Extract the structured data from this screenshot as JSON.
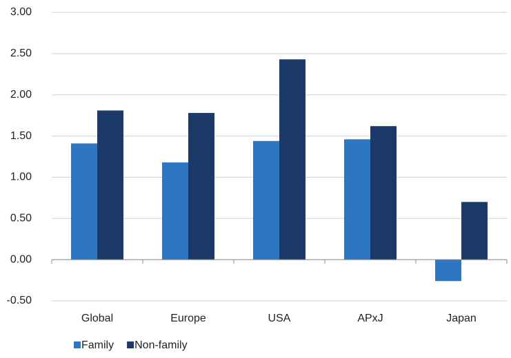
{
  "chart_data": {
    "type": "bar",
    "categories": [
      "Global",
      "Europe",
      "USA",
      "APxJ",
      "Japan"
    ],
    "series": [
      {
        "name": "Family",
        "color": "#2e75c2",
        "values": [
          1.41,
          1.18,
          1.44,
          1.46,
          -0.26
        ]
      },
      {
        "name": "Non-family",
        "color": "#1b3a68",
        "values": [
          1.81,
          1.78,
          2.43,
          1.62,
          0.7
        ]
      }
    ],
    "ylim": [
      -0.5,
      3.0
    ],
    "yticks": [
      {
        "value": -0.5,
        "label": "-0.50"
      },
      {
        "value": 0,
        "label": "0.00"
      },
      {
        "value": 0.5,
        "label": "0.50"
      },
      {
        "value": 1,
        "label": "1.00"
      },
      {
        "value": 1.5,
        "label": "1.50"
      },
      {
        "value": 2,
        "label": "2.00"
      },
      {
        "value": 2.5,
        "label": "2.50"
      },
      {
        "value": 3,
        "label": "3.00"
      }
    ],
    "grid": true
  }
}
